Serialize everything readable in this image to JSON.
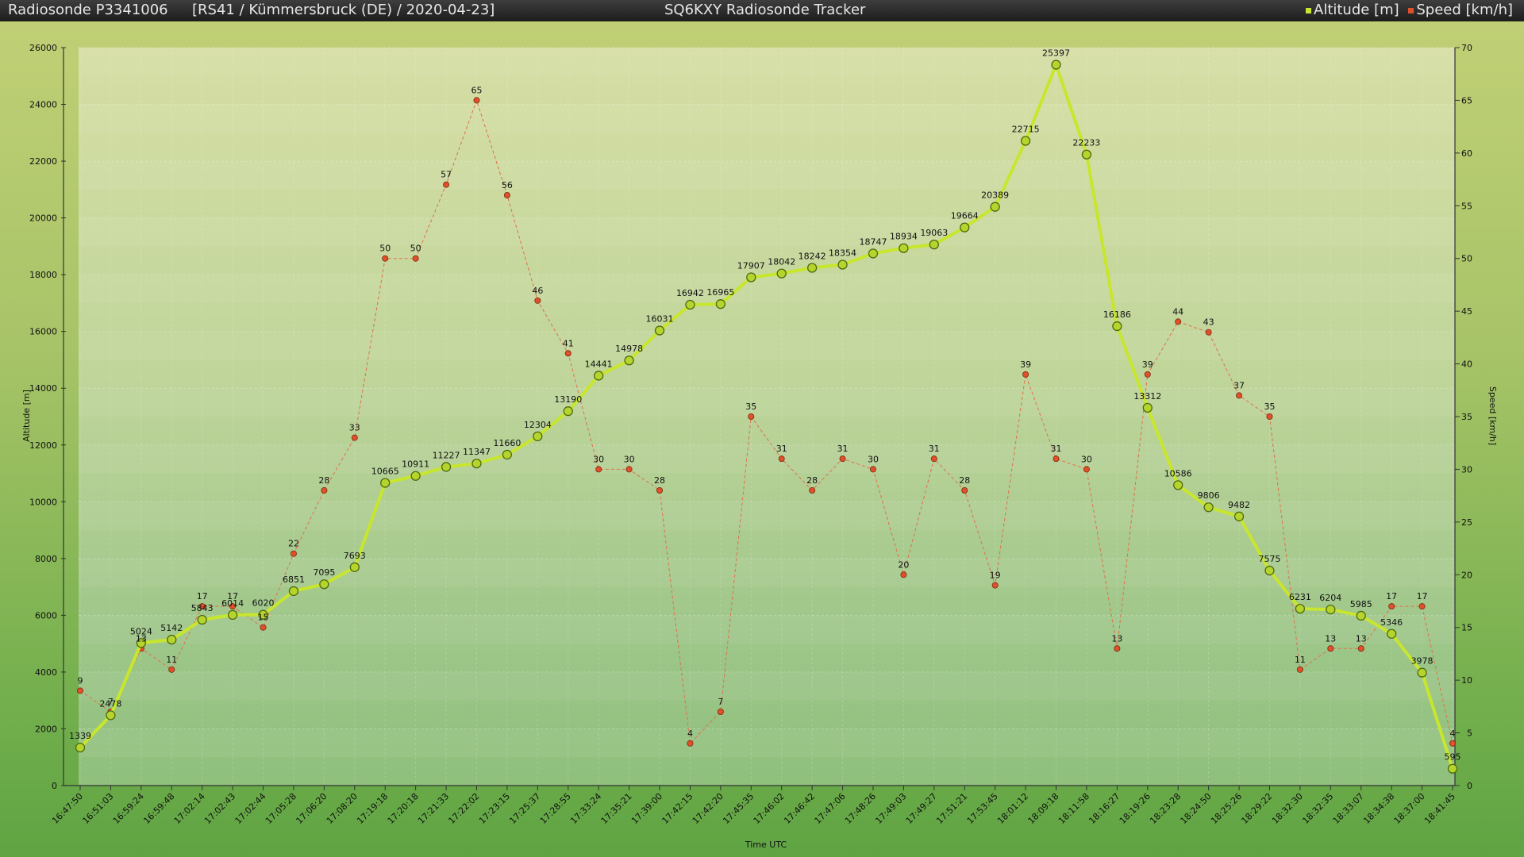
{
  "header": {
    "sonde": "Radiosonde P3341006",
    "info": "[RS41 / Kümmersbruck (DE) / 2020-04-23]",
    "app_title": "SQ6KXY Radiosonde Tracker"
  },
  "chart_data": {
    "type": "line",
    "title": "",
    "xlabel": "Time UTC",
    "ylabel": "Altitude [m]",
    "y2label": "Speed [km/h]",
    "ylim": [
      0,
      26000
    ],
    "y2lim": [
      0,
      70
    ],
    "ytick_step": 2000,
    "y2tick_step": 5,
    "grid": true,
    "legend": "top-right",
    "x": [
      "16:47:50",
      "16:51:03",
      "16:59:24",
      "16:59:48",
      "17:02:14",
      "17:02:43",
      "17:02:44",
      "17:05:28",
      "17:06:20",
      "17:08:20",
      "17:19:18",
      "17:20:18",
      "17:21:33",
      "17:22:02",
      "17:23:15",
      "17:25:37",
      "17:28:55",
      "17:33:24",
      "17:35:21",
      "17:39:00",
      "17:42:15",
      "17:42:20",
      "17:45:35",
      "17:46:02",
      "17:46:42",
      "17:47:06",
      "17:48:26",
      "17:49:03",
      "17:49:27",
      "17:51:21",
      "17:53:45",
      "18:01:12",
      "18:09:18",
      "18:11:58",
      "18:16:27",
      "18:19:26",
      "18:23:28",
      "18:24:50",
      "18:25:26",
      "18:29:22",
      "18:32:30",
      "18:32:35",
      "18:33:07",
      "18:34:38",
      "18:37:00",
      "18:41:45"
    ],
    "series": [
      {
        "name": "Altitude [m]",
        "axis": "left",
        "color": "#c8e62e",
        "values": [
          1339,
          2478,
          5024,
          5142,
          5843,
          6014,
          6020,
          6851,
          7095,
          7693,
          10665,
          10911,
          11227,
          11347,
          11660,
          12304,
          13190,
          14441,
          14978,
          16031,
          16942,
          16965,
          17907,
          18042,
          18242,
          18354,
          18747,
          18934,
          19063,
          19664,
          20389,
          22715,
          25397,
          22233,
          16186,
          13312,
          10586,
          9806,
          9482,
          7575,
          6231,
          6204,
          5985,
          5346,
          3978,
          595
        ]
      },
      {
        "name": "Speed [km/h]",
        "axis": "right",
        "color": "#e0502a",
        "values": [
          9,
          7,
          13,
          11,
          17,
          17,
          15,
          22,
          28,
          33,
          50,
          50,
          57,
          65,
          56,
          46,
          41,
          30,
          30,
          28,
          4,
          7,
          35,
          31,
          28,
          31,
          30,
          20,
          31,
          28,
          19,
          39,
          31,
          30,
          13,
          39,
          44,
          43,
          37,
          35,
          11,
          13,
          13,
          17,
          17,
          4
        ]
      }
    ]
  }
}
